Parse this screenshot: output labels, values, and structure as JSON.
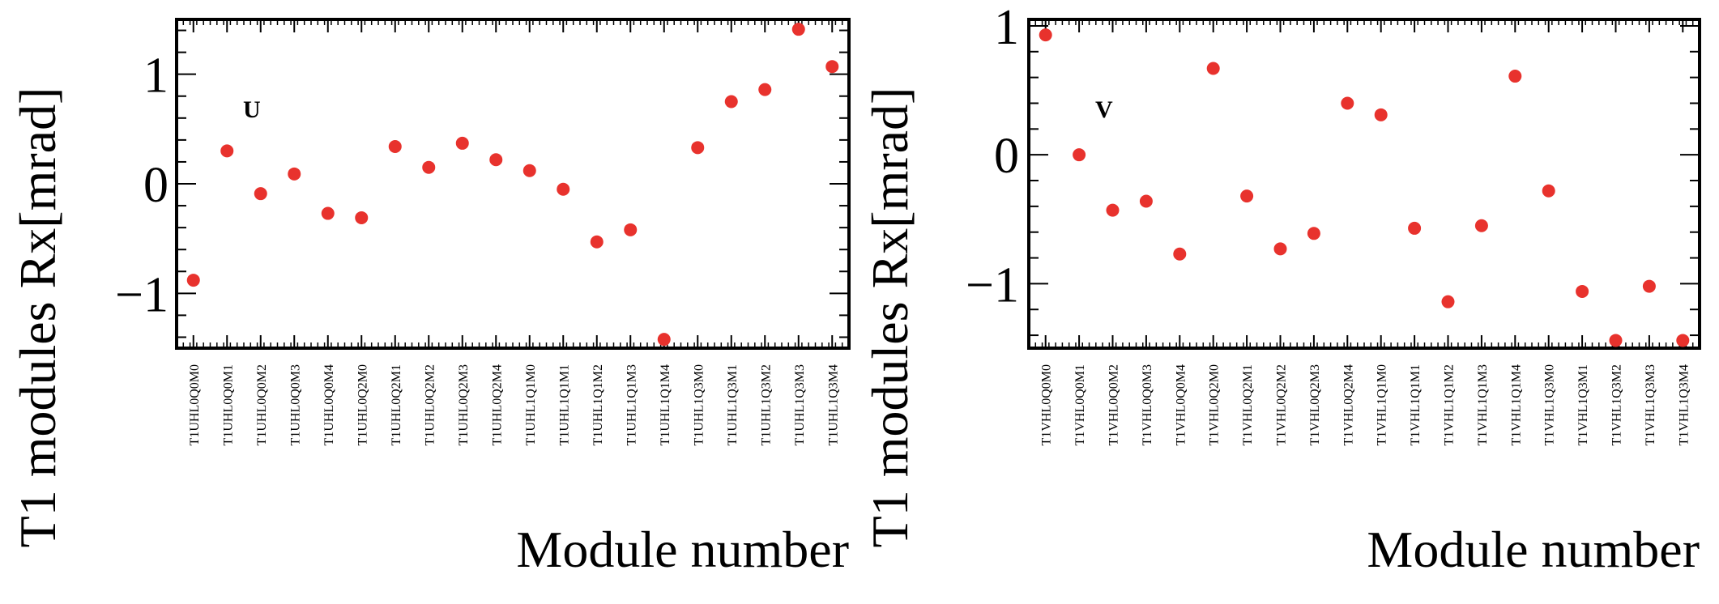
{
  "chart_data": [
    {
      "type": "scatter",
      "panel_label": "U",
      "xlabel": "Module number",
      "ylabel": "T1 modules Rx[mrad]",
      "ylim": [
        -1.5,
        1.5
      ],
      "yticks": [
        "-1",
        "0",
        "1"
      ],
      "ytick_values": [
        -1,
        0,
        1
      ],
      "categories": [
        "T1UHL0Q0M0",
        "T1UHL0Q0M1",
        "T1UHL0Q0M2",
        "T1UHL0Q0M3",
        "T1UHL0Q0M4",
        "T1UHL0Q2M0",
        "T1UHL0Q2M1",
        "T1UHL0Q2M2",
        "T1UHL0Q2M3",
        "T1UHL0Q2M4",
        "T1UHL1Q1M0",
        "T1UHL1Q1M1",
        "T1UHL1Q1M2",
        "T1UHL1Q1M3",
        "T1UHL1Q1M4",
        "T1UHL1Q3M0",
        "T1UHL1Q3M1",
        "T1UHL1Q3M2",
        "T1UHL1Q3M3",
        "T1UHL1Q3M4"
      ],
      "values": [
        -0.88,
        0.3,
        -0.09,
        0.09,
        -0.27,
        -0.31,
        0.34,
        0.15,
        0.37,
        0.22,
        0.12,
        -0.05,
        -0.53,
        -0.42,
        -1.42,
        0.33,
        0.75,
        0.86,
        1.41,
        1.07
      ],
      "marker_color": "#e8322d",
      "grid": false
    },
    {
      "type": "scatter",
      "panel_label": "V",
      "xlabel": "Module number",
      "ylabel": "T1 modules Rx[mrad]",
      "ylim": [
        -1.5,
        1.05
      ],
      "yticks": [
        "-1",
        "0",
        "1"
      ],
      "ytick_values": [
        -1,
        0,
        1
      ],
      "categories": [
        "T1VHL0Q0M0",
        "T1VHL0Q0M1",
        "T1VHL0Q0M2",
        "T1VHL0Q0M3",
        "T1VHL0Q0M4",
        "T1VHL0Q2M0",
        "T1VHL0Q2M1",
        "T1VHL0Q2M2",
        "T1VHL0Q2M3",
        "T1VHL0Q2M4",
        "T1VHL1Q1M0",
        "T1VHL1Q1M1",
        "T1VHL1Q1M2",
        "T1VHL1Q1M3",
        "T1VHL1Q1M4",
        "T1VHL1Q3M0",
        "T1VHL1Q3M1",
        "T1VHL1Q3M2",
        "T1VHL1Q3M3",
        "T1VHL1Q3M4"
      ],
      "values": [
        0.93,
        0.0,
        -0.43,
        -0.36,
        -0.77,
        0.67,
        -0.32,
        -0.73,
        -0.61,
        0.4,
        0.31,
        -0.57,
        -1.14,
        -0.55,
        0.61,
        -0.28,
        -1.06,
        -1.44,
        -1.02,
        -1.44
      ],
      "marker_color": "#e8322d",
      "grid": false
    }
  ]
}
